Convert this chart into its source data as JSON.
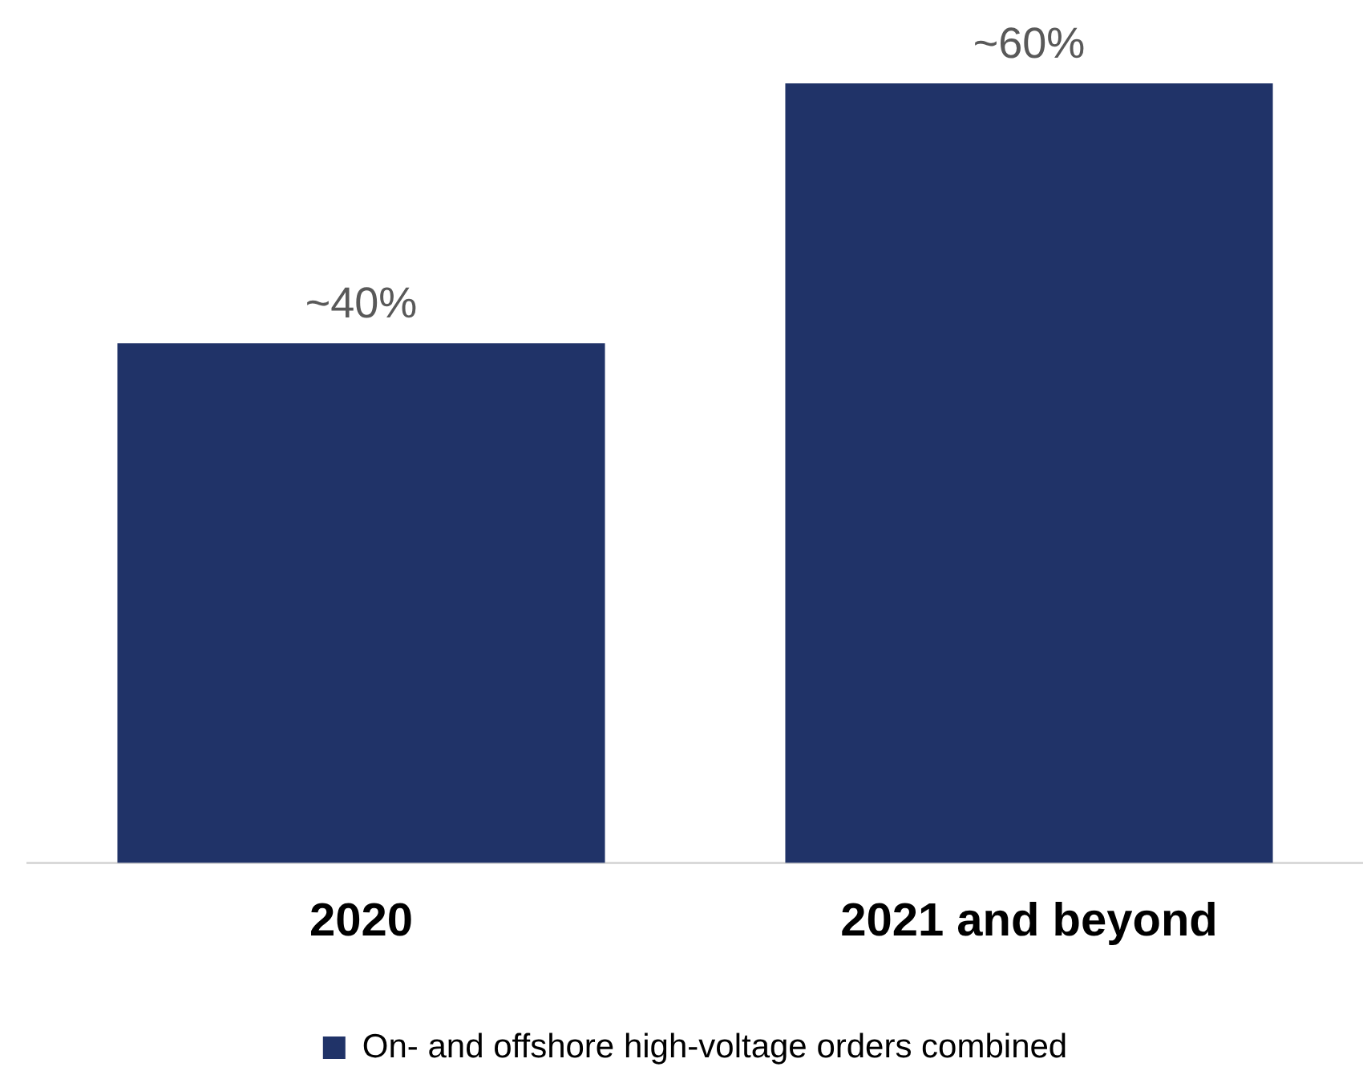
{
  "chart_data": {
    "type": "bar",
    "categories": [
      "2020",
      "2021 and beyond"
    ],
    "series": [
      {
        "name": "On- and offshore high-voltage orders combined",
        "color": "#203368",
        "values": [
          40,
          60
        ],
        "value_labels": [
          "~40%",
          "~60%"
        ]
      }
    ],
    "legend": "bottom",
    "grid": false,
    "tick_labels": "x"
  }
}
